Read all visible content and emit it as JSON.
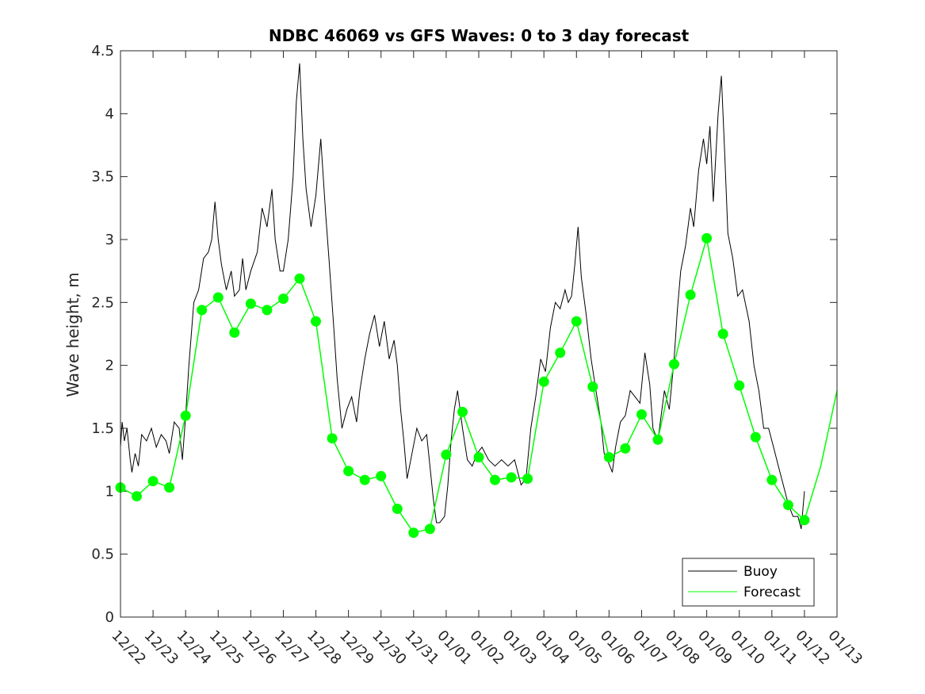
{
  "chart_data": {
    "type": "line",
    "title": "NDBC 46069 vs GFS Waves: 0 to 3 day forecast",
    "xlabel": "",
    "ylabel": "Wave height, m",
    "ylim": [
      0,
      4.5
    ],
    "yticks": [
      0,
      0.5,
      1,
      1.5,
      2,
      2.5,
      3,
      3.5,
      4,
      4.5
    ],
    "ytick_labels": [
      "0",
      "0.5",
      "1",
      "1.5",
      "2",
      "2.5",
      "3",
      "3.5",
      "4",
      "4.5"
    ],
    "xlim_days": [
      0,
      22
    ],
    "x_tick_labels": [
      "12/22",
      "12/23",
      "12/24",
      "12/25",
      "12/26",
      "12/27",
      "12/28",
      "12/29",
      "12/30",
      "12/31",
      "01/01",
      "01/02",
      "01/03",
      "01/04",
      "01/05",
      "01/06",
      "01/07",
      "01/08",
      "01/09",
      "01/10",
      "01/11",
      "01/12",
      "01/13"
    ],
    "legend_position": "bottom-right",
    "series": [
      {
        "name": "Buoy",
        "color": "#000000",
        "x_unit": "days since 12/22",
        "points": [
          [
            0,
            1.35
          ],
          [
            0.05,
            1.55
          ],
          [
            0.12,
            1.4
          ],
          [
            0.2,
            1.5
          ],
          [
            0.3,
            1.25
          ],
          [
            0.35,
            1.15
          ],
          [
            0.45,
            1.3
          ],
          [
            0.55,
            1.2
          ],
          [
            0.65,
            1.45
          ],
          [
            0.8,
            1.4
          ],
          [
            0.95,
            1.5
          ],
          [
            1.1,
            1.35
          ],
          [
            1.25,
            1.45
          ],
          [
            1.4,
            1.4
          ],
          [
            1.5,
            1.3
          ],
          [
            1.65,
            1.55
          ],
          [
            1.8,
            1.5
          ],
          [
            1.9,
            1.25
          ],
          [
            2.0,
            1.6
          ],
          [
            2.1,
            2.0
          ],
          [
            2.25,
            2.5
          ],
          [
            2.4,
            2.6
          ],
          [
            2.55,
            2.85
          ],
          [
            2.7,
            2.9
          ],
          [
            2.8,
            3.0
          ],
          [
            2.9,
            3.3
          ],
          [
            3.0,
            3.0
          ],
          [
            3.1,
            2.8
          ],
          [
            3.25,
            2.6
          ],
          [
            3.4,
            2.75
          ],
          [
            3.5,
            2.55
          ],
          [
            3.65,
            2.6
          ],
          [
            3.75,
            2.85
          ],
          [
            3.85,
            2.6
          ],
          [
            4.0,
            2.75
          ],
          [
            4.2,
            2.9
          ],
          [
            4.35,
            3.25
          ],
          [
            4.5,
            3.1
          ],
          [
            4.65,
            3.4
          ],
          [
            4.75,
            3.0
          ],
          [
            4.9,
            2.75
          ],
          [
            5.0,
            2.75
          ],
          [
            5.15,
            3.0
          ],
          [
            5.3,
            3.5
          ],
          [
            5.4,
            4.1
          ],
          [
            5.5,
            4.4
          ],
          [
            5.6,
            3.8
          ],
          [
            5.7,
            3.4
          ],
          [
            5.85,
            3.1
          ],
          [
            6.0,
            3.35
          ],
          [
            6.15,
            3.8
          ],
          [
            6.3,
            3.2
          ],
          [
            6.4,
            2.85
          ],
          [
            6.55,
            2.3
          ],
          [
            6.65,
            1.9
          ],
          [
            6.8,
            1.5
          ],
          [
            6.95,
            1.65
          ],
          [
            7.1,
            1.75
          ],
          [
            7.25,
            1.55
          ],
          [
            7.35,
            1.8
          ],
          [
            7.5,
            2.05
          ],
          [
            7.65,
            2.25
          ],
          [
            7.8,
            2.4
          ],
          [
            7.95,
            2.15
          ],
          [
            8.1,
            2.35
          ],
          [
            8.25,
            2.05
          ],
          [
            8.4,
            2.2
          ],
          [
            8.5,
            2.0
          ],
          [
            8.6,
            1.65
          ],
          [
            8.7,
            1.4
          ],
          [
            8.8,
            1.1
          ],
          [
            8.95,
            1.3
          ],
          [
            9.1,
            1.5
          ],
          [
            9.25,
            1.4
          ],
          [
            9.4,
            1.45
          ],
          [
            9.5,
            1.2
          ],
          [
            9.6,
            0.95
          ],
          [
            9.7,
            0.75
          ],
          [
            9.8,
            0.75
          ],
          [
            9.95,
            0.8
          ],
          [
            10.05,
            1.05
          ],
          [
            10.15,
            1.4
          ],
          [
            10.25,
            1.65
          ],
          [
            10.35,
            1.8
          ],
          [
            10.5,
            1.5
          ],
          [
            10.65,
            1.25
          ],
          [
            10.8,
            1.2
          ],
          [
            10.95,
            1.3
          ],
          [
            11.1,
            1.35
          ],
          [
            11.3,
            1.25
          ],
          [
            11.5,
            1.2
          ],
          [
            11.7,
            1.25
          ],
          [
            11.9,
            1.2
          ],
          [
            12.1,
            1.25
          ],
          [
            12.3,
            1.05
          ],
          [
            12.45,
            1.1
          ],
          [
            12.6,
            1.5
          ],
          [
            12.75,
            1.75
          ],
          [
            12.9,
            2.05
          ],
          [
            13.05,
            1.95
          ],
          [
            13.2,
            2.3
          ],
          [
            13.35,
            2.5
          ],
          [
            13.5,
            2.45
          ],
          [
            13.65,
            2.6
          ],
          [
            13.75,
            2.5
          ],
          [
            13.85,
            2.55
          ],
          [
            13.95,
            2.8
          ],
          [
            14.05,
            3.1
          ],
          [
            14.15,
            2.7
          ],
          [
            14.3,
            2.4
          ],
          [
            14.45,
            2.05
          ],
          [
            14.6,
            1.8
          ],
          [
            14.75,
            1.55
          ],
          [
            14.85,
            1.3
          ],
          [
            14.95,
            1.25
          ],
          [
            15.1,
            1.15
          ],
          [
            15.2,
            1.35
          ],
          [
            15.35,
            1.55
          ],
          [
            15.5,
            1.6
          ],
          [
            15.65,
            1.8
          ],
          [
            15.8,
            1.75
          ],
          [
            15.95,
            1.7
          ],
          [
            16.1,
            2.1
          ],
          [
            16.25,
            1.85
          ],
          [
            16.35,
            1.5
          ],
          [
            16.5,
            1.4
          ],
          [
            16.6,
            1.6
          ],
          [
            16.7,
            1.8
          ],
          [
            16.85,
            1.65
          ],
          [
            17.0,
            2.05
          ],
          [
            17.1,
            2.45
          ],
          [
            17.2,
            2.75
          ],
          [
            17.35,
            2.95
          ],
          [
            17.5,
            3.25
          ],
          [
            17.6,
            3.1
          ],
          [
            17.75,
            3.55
          ],
          [
            17.9,
            3.8
          ],
          [
            18.0,
            3.6
          ],
          [
            18.1,
            3.9
          ],
          [
            18.2,
            3.3
          ],
          [
            18.35,
            4.0
          ],
          [
            18.45,
            4.3
          ],
          [
            18.55,
            3.7
          ],
          [
            18.65,
            3.05
          ],
          [
            18.8,
            2.85
          ],
          [
            18.95,
            2.55
          ],
          [
            19.1,
            2.6
          ],
          [
            19.3,
            2.35
          ],
          [
            19.45,
            2.0
          ],
          [
            19.6,
            1.8
          ],
          [
            19.75,
            1.5
          ],
          [
            19.9,
            1.5
          ],
          [
            20.05,
            1.35
          ],
          [
            20.2,
            1.2
          ],
          [
            20.35,
            1.05
          ],
          [
            20.5,
            0.9
          ],
          [
            20.65,
            0.8
          ],
          [
            20.8,
            0.8
          ],
          [
            20.9,
            0.7
          ],
          [
            21.0,
            1.0
          ]
        ]
      },
      {
        "name": "Forecast",
        "color": "#00ff00",
        "x_unit": "days since 12/22",
        "points": [
          [
            0,
            1.03
          ],
          [
            0.5,
            0.96
          ],
          [
            1.0,
            1.08
          ],
          [
            1.5,
            1.03
          ],
          [
            2.0,
            1.6
          ],
          [
            2.5,
            2.44
          ],
          [
            3.0,
            2.54
          ],
          [
            3.5,
            2.26
          ],
          [
            4.0,
            2.49
          ],
          [
            4.5,
            2.44
          ],
          [
            5.0,
            2.53
          ],
          [
            5.5,
            2.69
          ],
          [
            6.0,
            2.35
          ],
          [
            6.5,
            1.42
          ],
          [
            7.0,
            1.16
          ],
          [
            7.5,
            1.09
          ],
          [
            8.0,
            1.12
          ],
          [
            8.5,
            0.86
          ],
          [
            9.0,
            0.67
          ],
          [
            9.5,
            0.7
          ],
          [
            10.0,
            1.29
          ],
          [
            10.5,
            1.63
          ],
          [
            11.0,
            1.27
          ],
          [
            11.5,
            1.09
          ],
          [
            12.0,
            1.11
          ],
          [
            12.5,
            1.1
          ],
          [
            13.0,
            1.87
          ],
          [
            13.5,
            2.1
          ],
          [
            14.0,
            2.35
          ],
          [
            14.5,
            1.83
          ],
          [
            15.0,
            1.27
          ],
          [
            15.5,
            1.34
          ],
          [
            16.0,
            1.61
          ],
          [
            16.5,
            1.41
          ],
          [
            17.0,
            2.01
          ],
          [
            17.5,
            2.56
          ],
          [
            18.0,
            3.01
          ],
          [
            18.5,
            2.25
          ],
          [
            19.0,
            1.84
          ],
          [
            19.5,
            1.43
          ],
          [
            20.0,
            1.09
          ],
          [
            20.5,
            0.89
          ],
          [
            21.0,
            0.77
          ],
          [
            21.5,
            1.2
          ],
          [
            22.0,
            1.8
          ]
        ]
      }
    ]
  }
}
